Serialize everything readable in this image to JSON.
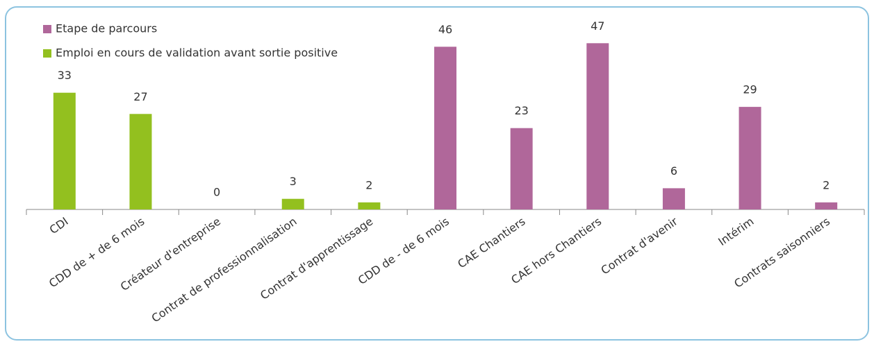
{
  "chart_data": {
    "type": "bar",
    "categories": [
      "CDI",
      "CDD de + de 6 mois",
      "Créateur d'entreprise",
      "Contrat de professionnalisation",
      "Contrat d'apprentissage",
      "CDD de - de 6 mois",
      "CAE Chantiers",
      "CAE hors Chantiers",
      "Contrat d'avenir",
      "Intérim",
      "Contrats saisonniers"
    ],
    "series": [
      {
        "name": "Etape de parcours",
        "color": "#b0679a",
        "values": [
          null,
          null,
          null,
          null,
          null,
          46,
          23,
          47,
          6,
          29,
          2
        ]
      },
      {
        "name": "Emploi en cours de validation avant sortie positive",
        "color": "#93c01f",
        "values": [
          33,
          27,
          0,
          3,
          2,
          null,
          null,
          null,
          null,
          null,
          null
        ]
      }
    ],
    "ylim": [
      0,
      50
    ],
    "legend": "top-left"
  }
}
